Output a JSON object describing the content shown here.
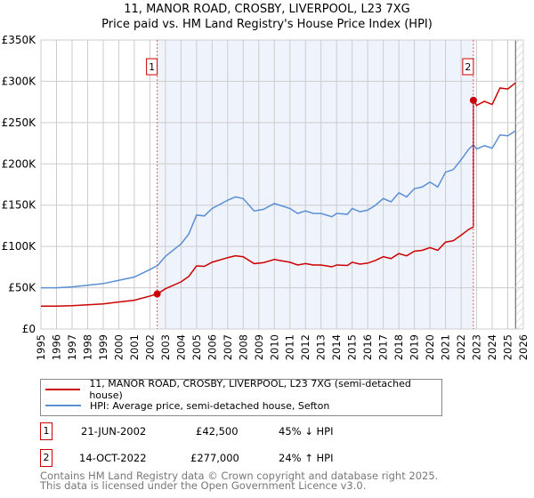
{
  "chart_data": {
    "type": "line",
    "title": "11, MANOR ROAD, CROSBY, LIVERPOOL, L23 7XG",
    "subtitle": "Price paid vs. HM Land Registry's House Price Index (HPI)",
    "xlim": [
      1995,
      2026
    ],
    "ylim": [
      0,
      350000
    ],
    "yticks": [
      "£0",
      "£50K",
      "£100K",
      "£150K",
      "£200K",
      "£250K",
      "£300K",
      "£350K"
    ],
    "xticks": [
      "1995",
      "1996",
      "1997",
      "1998",
      "1999",
      "2000",
      "2001",
      "2002",
      "2003",
      "2004",
      "2005",
      "2006",
      "2007",
      "2008",
      "2009",
      "2010",
      "2011",
      "2012",
      "2013",
      "2014",
      "2015",
      "2016",
      "2017",
      "2018",
      "2019",
      "2020",
      "2021",
      "2022",
      "2023",
      "2024",
      "2025",
      "2026"
    ],
    "hpi_x": [
      1995,
      1996,
      1997,
      1998,
      1999,
      2000,
      2001,
      2002,
      2002.5,
      2003,
      2004,
      2004.5,
      2005,
      2005.5,
      2006,
      2007,
      2007.5,
      2008,
      2008.7,
      2009.3,
      2010,
      2010.5,
      2011,
      2011.5,
      2012,
      2012.5,
      2013,
      2013.7,
      2014,
      2014.7,
      2015,
      2015.5,
      2016,
      2016.5,
      2017,
      2017.5,
      2018,
      2018.5,
      2019,
      2019.5,
      2020,
      2020.5,
      2021,
      2021.5,
      2022,
      2022.5,
      2022.79,
      2023,
      2023.5,
      2024,
      2024.5,
      2025,
      2025.5
    ],
    "hpi_y": [
      50000,
      50000,
      51000,
      53000,
      55000,
      59000,
      63000,
      72000,
      77000,
      88000,
      103000,
      115000,
      138000,
      137000,
      146000,
      156000,
      160000,
      158000,
      143000,
      145000,
      152000,
      149000,
      146000,
      140000,
      143000,
      140000,
      140000,
      136000,
      140000,
      139000,
      146000,
      142000,
      144000,
      150000,
      158000,
      154000,
      165000,
      160000,
      170000,
      172000,
      178000,
      172000,
      190000,
      193000,
      205000,
      218000,
      223000,
      218000,
      222000,
      219000,
      235000,
      234000,
      240000
    ],
    "sales": [
      {
        "n": "1",
        "x": 2002.47,
        "date": "21-JUN-2002",
        "price": 42500,
        "price_label": "£42,500",
        "delta": "45% ↓ HPI"
      },
      {
        "n": "2",
        "x": 2022.79,
        "date": "14-OCT-2022",
        "price": 277000,
        "price_label": "£277,000",
        "delta": "24% ↑ HPI"
      }
    ],
    "legend": [
      "11, MANOR ROAD, CROSBY, LIVERPOOL, L23 7XG (semi-detached house)",
      "HPI: Average price, semi-detached house, Sefton"
    ],
    "colors": {
      "property": "#cc0000",
      "hpi": "#5b8fd4"
    }
  },
  "footer": [
    "Contains HM Land Registry data © Crown copyright and database right 2025.",
    "This data is licensed under the Open Government Licence v3.0."
  ]
}
